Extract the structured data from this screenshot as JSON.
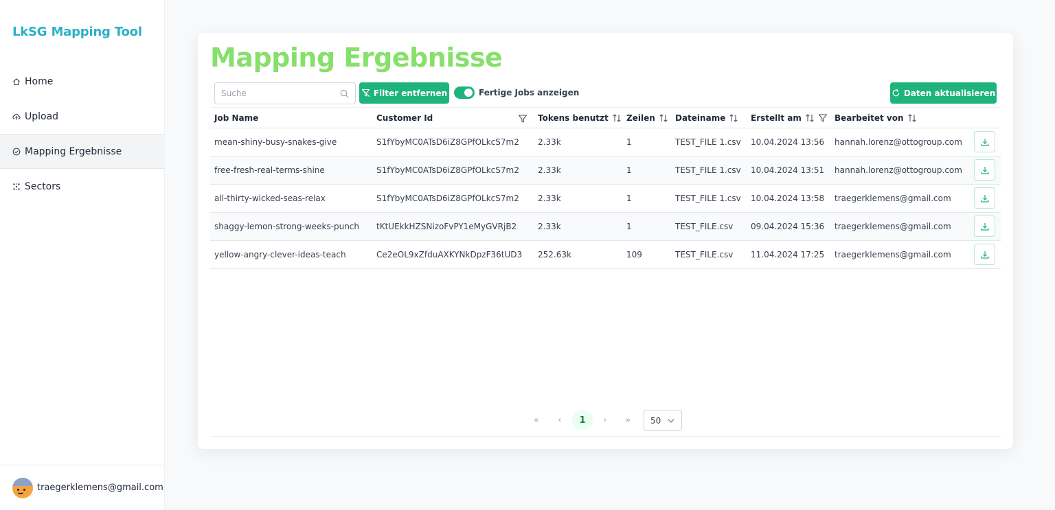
{
  "app": {
    "brand": "LkSG Mapping Tool"
  },
  "sidebar": {
    "items": [
      {
        "label": "Home",
        "icon": "home-icon"
      },
      {
        "label": "Upload",
        "icon": "cloud-upload-icon"
      },
      {
        "label": "Mapping Ergebnisse",
        "icon": "check-circle-icon",
        "active": true
      },
      {
        "label": "Sectors",
        "icon": "sectors-icon"
      }
    ],
    "user_email": "traegerklemens@gmail.com"
  },
  "main": {
    "title": "Mapping Ergebnisse",
    "search_placeholder": "Suche",
    "filter_button": "Filter entfernen",
    "toggle_label": "Fertige Jobs anzeigen",
    "toggle_on": true,
    "refresh_button": "Daten aktualisieren",
    "accent_color": "#1eb47c",
    "title_color": "#86e06a"
  },
  "table": {
    "columns": [
      "Job Name",
      "Customer Id",
      "Tokens benutzt",
      "Zeilen",
      "Dateiname",
      "Erstellt am",
      "Bearbeitet von"
    ],
    "rows": [
      [
        "mean-shiny-busy-snakes-give",
        "S1fYbyMC0ATsD6iZ8GPfOLkcS7m2",
        "2.33k",
        "1",
        "TEST_FILE 1.csv",
        "10.04.2024 13:56",
        "hannah.lorenz@ottogroup.com"
      ],
      [
        "free-fresh-real-terms-shine",
        "S1fYbyMC0ATsD6iZ8GPfOLkcS7m2",
        "2.33k",
        "1",
        "TEST_FILE 1.csv",
        "10.04.2024 13:51",
        "hannah.lorenz@ottogroup.com"
      ],
      [
        "all-thirty-wicked-seas-relax",
        "S1fYbyMC0ATsD6iZ8GPfOLkcS7m2",
        "2.33k",
        "1",
        "TEST_FILE 1.csv",
        "10.04.2024 13:58",
        "traegerklemens@gmail.com"
      ],
      [
        "shaggy-lemon-strong-weeks-punch",
        "tKtUEkkHZSNizoFvPY1eMyGVRjB2",
        "2.33k",
        "1",
        "TEST_FILE.csv",
        "09.04.2024 15:36",
        "traegerklemens@gmail.com"
      ],
      [
        "yellow-angry-clever-ideas-teach",
        "Ce2eOL9xZfduAXKYNkDpzF36tUD3",
        "252.63k",
        "109",
        "TEST_FILE.csv",
        "11.04.2024 17:25",
        "traegerklemens@gmail.com"
      ]
    ]
  },
  "pagination": {
    "first": "«",
    "prev": "‹",
    "current_page": "1",
    "next": "›",
    "last": "»",
    "per_page": "50"
  }
}
